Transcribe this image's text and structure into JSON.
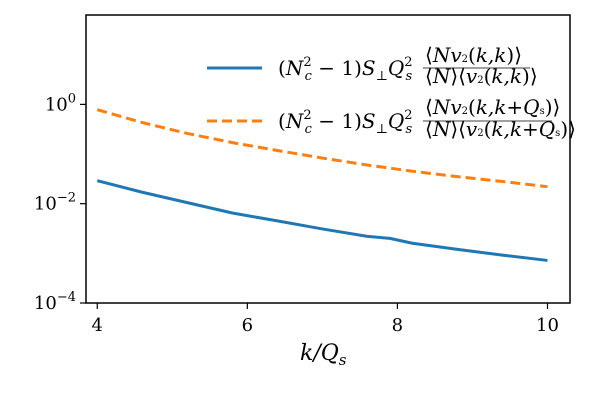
{
  "chart_data": {
    "type": "line",
    "title": "",
    "xlabel": "k/Q_s",
    "ylabel": "",
    "xlim": [
      3.85,
      10.3
    ],
    "ylim_log10": [
      -4,
      1.8
    ],
    "y_scale": "log",
    "grid": false,
    "legend_placement": "top-right",
    "x_ticks": [
      4,
      6,
      8,
      10
    ],
    "y_ticks": [
      {
        "value_log10": -4,
        "base": "10",
        "exp": "−4"
      },
      {
        "value_log10": -2,
        "base": "10",
        "exp": "−2"
      },
      {
        "value_log10": 0,
        "base": "10",
        "exp": "0"
      }
    ],
    "series": [
      {
        "name": "(N_c^2 − 1) S_⊥ Q_s^2 ⟨N v_2^2(k,k)⟩ / (⟨N⟩⟨v_2^2(k,k)⟩)",
        "style": "solid",
        "color": "#1f77b4",
        "x": [
          4.0,
          4.6,
          5.2,
          5.8,
          6.4,
          7.0,
          7.6,
          7.9,
          8.2,
          8.8,
          9.4,
          10.0
        ],
        "y": [
          0.029,
          0.017,
          0.0105,
          0.0065,
          0.0045,
          0.0031,
          0.0022,
          0.002,
          0.0016,
          0.0012,
          0.00092,
          0.00072
        ]
      },
      {
        "name": "(N_c^2 − 1) S_⊥ Q_s^2 ⟨N v_2^2(k,k+Q_s)⟩ / (⟨N⟩⟨v_2^2(k,k+Q_s)⟩)",
        "style": "dashed",
        "color": "#ff7f0e",
        "x": [
          4.0,
          4.6,
          5.2,
          5.8,
          6.4,
          7.0,
          7.6,
          8.2,
          8.8,
          9.4,
          10.0
        ],
        "y": [
          0.78,
          0.43,
          0.26,
          0.17,
          0.118,
          0.083,
          0.06,
          0.045,
          0.035,
          0.028,
          0.022
        ]
      }
    ]
  }
}
